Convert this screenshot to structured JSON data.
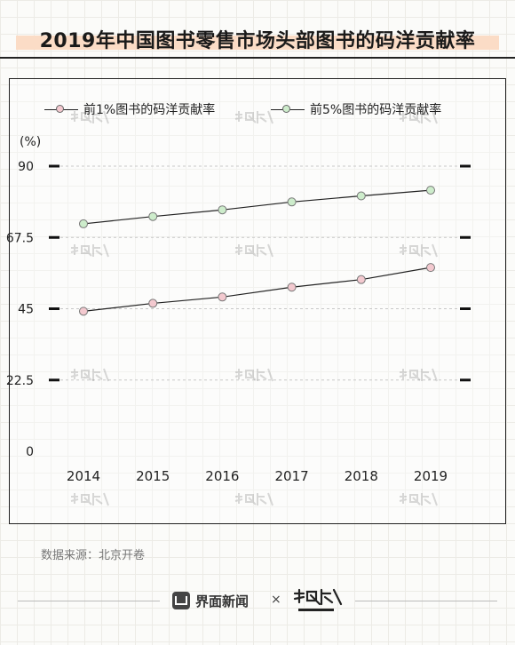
{
  "title": "2019年中国图书零售市场头部图书的码洋贡献率",
  "chart_data": {
    "type": "line",
    "categories": [
      "2014",
      "2015",
      "2016",
      "2017",
      "2018",
      "2019"
    ],
    "series": [
      {
        "name": "前1%图书的码洋贡献率",
        "values": [
          44.2,
          46.7,
          48.7,
          51.8,
          54.2,
          58.0
        ],
        "color": "#f3c9cf"
      },
      {
        "name": "前5%图书的码洋贡献率",
        "values": [
          71.8,
          74.1,
          76.2,
          78.7,
          80.6,
          82.4
        ],
        "color": "#cdeccb"
      }
    ],
    "yticks": [
      0,
      22.5,
      45,
      67.5,
      90
    ],
    "ytick_labels": [
      "0",
      "22.5",
      "45",
      "67.5",
      "90"
    ],
    "ylim": [
      0,
      90
    ],
    "unit": "(%)",
    "grid": "dashed horizontal",
    "legend": "top-left"
  },
  "source": "数据来源：北京开卷",
  "footer": {
    "brand1": "界面新闻",
    "times": "×",
    "brand2_icon": "data-wire-logo"
  },
  "watermark_icon": "data-wire-watermark"
}
